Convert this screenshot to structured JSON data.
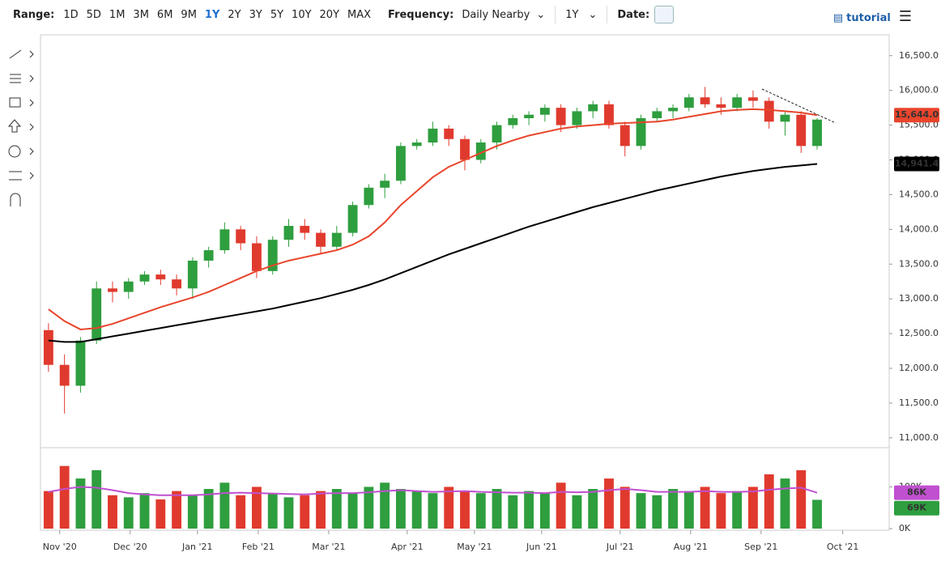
{
  "toolbar": {
    "range_label": "Range:",
    "ranges": [
      "1D",
      "5D",
      "1M",
      "3M",
      "6M",
      "9M",
      "1Y",
      "2Y",
      "3Y",
      "5Y",
      "10Y",
      "20Y",
      "MAX"
    ],
    "frequency_label": "Frequency:",
    "frequency": "Daily Nearby",
    "period": "1Y",
    "date_label": "Date:",
    "tutorial": "tutorial"
  },
  "chart_data": {
    "type": "candlestick",
    "up_color": "#2e9e3e",
    "down_color": "#e03a2e",
    "xlim": [
      -0.5,
      52.5
    ],
    "xticks": [
      {
        "value": 0.7,
        "label": "Nov '20"
      },
      {
        "value": 5.1,
        "label": "Dec '20"
      },
      {
        "value": 9.3,
        "label": "Jan '21"
      },
      {
        "value": 13.1,
        "label": "Feb '21"
      },
      {
        "value": 17.5,
        "label": "Mar '21"
      },
      {
        "value": 22.4,
        "label": "Apr '21"
      },
      {
        "value": 26.6,
        "label": "May '21"
      },
      {
        "value": 30.8,
        "label": "Jun '21"
      },
      {
        "value": 35.7,
        "label": "Jul '21"
      },
      {
        "value": 40.1,
        "label": "Aug '21"
      },
      {
        "value": 44.5,
        "label": "Sep '21"
      },
      {
        "value": 49.6,
        "label": "Oct '21"
      }
    ],
    "ylim": [
      10870,
      16800
    ],
    "yticks": [
      {
        "value": 11000,
        "label": "11,000.0"
      },
      {
        "value": 11500,
        "label": "11,500.0"
      },
      {
        "value": 12000,
        "label": "12,000.0"
      },
      {
        "value": 12500,
        "label": "12,500.0"
      },
      {
        "value": 13000,
        "label": "13,000.0"
      },
      {
        "value": 13500,
        "label": "13,500.0"
      },
      {
        "value": 14000,
        "label": "14,000.0"
      },
      {
        "value": 14500,
        "label": "14,500.0"
      },
      {
        "value": 15000,
        "label": "15,000.0"
      },
      {
        "value": 15500,
        "label": "15,500.0"
      },
      {
        "value": 16000,
        "label": "16,000.0"
      },
      {
        "value": 16500,
        "label": "16,500.0"
      }
    ],
    "ohlc": [
      [
        12550,
        12650,
        11950,
        12050
      ],
      [
        12050,
        12200,
        11350,
        11750
      ],
      [
        11750,
        12450,
        11650,
        12400
      ],
      [
        12400,
        13250,
        12350,
        13150
      ],
      [
        13150,
        13250,
        12950,
        13100
      ],
      [
        13100,
        13300,
        13000,
        13250
      ],
      [
        13250,
        13400,
        13200,
        13350
      ],
      [
        13350,
        13420,
        13200,
        13280
      ],
      [
        13280,
        13350,
        13050,
        13150
      ],
      [
        13150,
        13600,
        13000,
        13550
      ],
      [
        13550,
        13750,
        13450,
        13700
      ],
      [
        13700,
        14100,
        13650,
        14000
      ],
      [
        14000,
        14050,
        13700,
        13800
      ],
      [
        13800,
        13900,
        13300,
        13400
      ],
      [
        13400,
        13900,
        13350,
        13850
      ],
      [
        13850,
        14150,
        13750,
        14050
      ],
      [
        14050,
        14150,
        13850,
        13950
      ],
      [
        13950,
        14000,
        13650,
        13750
      ],
      [
        13750,
        14050,
        13700,
        13950
      ],
      [
        13950,
        14400,
        13900,
        14350
      ],
      [
        14350,
        14650,
        14300,
        14600
      ],
      [
        14600,
        14800,
        14450,
        14700
      ],
      [
        14700,
        15250,
        14650,
        15200
      ],
      [
        15200,
        15300,
        15150,
        15250
      ],
      [
        15250,
        15550,
        15200,
        15450
      ],
      [
        15450,
        15500,
        15200,
        15300
      ],
      [
        15300,
        15350,
        14850,
        15000
      ],
      [
        15000,
        15300,
        14950,
        15250
      ],
      [
        15250,
        15550,
        15150,
        15500
      ],
      [
        15500,
        15650,
        15450,
        15600
      ],
      [
        15600,
        15700,
        15500,
        15650
      ],
      [
        15650,
        15800,
        15550,
        15750
      ],
      [
        15750,
        15800,
        15400,
        15500
      ],
      [
        15500,
        15750,
        15450,
        15700
      ],
      [
        15700,
        15850,
        15600,
        15800
      ],
      [
        15800,
        15850,
        15450,
        15500
      ],
      [
        15500,
        15550,
        15050,
        15200
      ],
      [
        15200,
        15650,
        15150,
        15600
      ],
      [
        15600,
        15750,
        15550,
        15700
      ],
      [
        15700,
        15800,
        15600,
        15750
      ],
      [
        15750,
        15950,
        15700,
        15900
      ],
      [
        15900,
        16050,
        15750,
        15800
      ],
      [
        15800,
        15900,
        15650,
        15750
      ],
      [
        15750,
        15950,
        15700,
        15900
      ],
      [
        15900,
        16000,
        15750,
        15850
      ],
      [
        15850,
        15900,
        15450,
        15550
      ],
      [
        15550,
        15700,
        15350,
        15650
      ],
      [
        15650,
        15700,
        15100,
        15200
      ],
      [
        15200,
        15600,
        15150,
        15580
      ]
    ],
    "lines": [
      {
        "color": "#e8452c",
        "values": [
          12850,
          12680,
          12560,
          12580,
          12640,
          12720,
          12800,
          12880,
          12950,
          13020,
          13100,
          13200,
          13300,
          13400,
          13480,
          13550,
          13600,
          13650,
          13700,
          13780,
          13900,
          14100,
          14350,
          14550,
          14750,
          14900,
          15000,
          15100,
          15200,
          15280,
          15350,
          15400,
          15450,
          15480,
          15500,
          15520,
          15530,
          15540,
          15550,
          15580,
          15620,
          15660,
          15700,
          15720,
          15730,
          15720,
          15700,
          15680,
          15644
        ],
        "last_value_label": "15,644.0"
      },
      {
        "color": "#000000",
        "values": [
          12400,
          12380,
          12380,
          12420,
          12460,
          12500,
          12540,
          12580,
          12620,
          12660,
          12700,
          12740,
          12780,
          12820,
          12860,
          12910,
          12960,
          13010,
          13070,
          13130,
          13200,
          13280,
          13370,
          13460,
          13550,
          13640,
          13720,
          13800,
          13880,
          13960,
          14040,
          14110,
          14180,
          14250,
          14320,
          14380,
          14440,
          14500,
          14560,
          14610,
          14660,
          14710,
          14760,
          14800,
          14840,
          14870,
          14900,
          14920,
          14941.4
        ],
        "last_value_label": "14,941.4"
      }
    ],
    "volume": {
      "ylim": [
        0,
        190
      ],
      "yticks": [
        {
          "value": 0,
          "label": "0K"
        },
        {
          "value": 100,
          "label": "100K"
        }
      ],
      "values": [
        90,
        150,
        120,
        140,
        80,
        75,
        85,
        70,
        90,
        80,
        95,
        110,
        80,
        100,
        85,
        75,
        80,
        90,
        95,
        85,
        100,
        110,
        95,
        90,
        85,
        100,
        90,
        85,
        95,
        80,
        90,
        85,
        110,
        80,
        95,
        120,
        100,
        85,
        80,
        95,
        90,
        100,
        85,
        90,
        100,
        130,
        120,
        140,
        69
      ],
      "last_value_label": "69K",
      "ma": [
        88,
        95,
        100,
        98,
        92,
        85,
        82,
        80,
        80,
        80,
        82,
        85,
        86,
        85,
        84,
        83,
        82,
        84,
        85,
        85,
        87,
        90,
        92,
        90,
        88,
        89,
        90,
        88,
        87,
        86,
        86,
        85,
        88,
        87,
        88,
        92,
        95,
        92,
        88,
        88,
        88,
        90,
        88,
        88,
        89,
        93,
        96,
        98,
        86
      ],
      "ma_color": "#c050d0",
      "ma_last_label": "86K"
    }
  }
}
